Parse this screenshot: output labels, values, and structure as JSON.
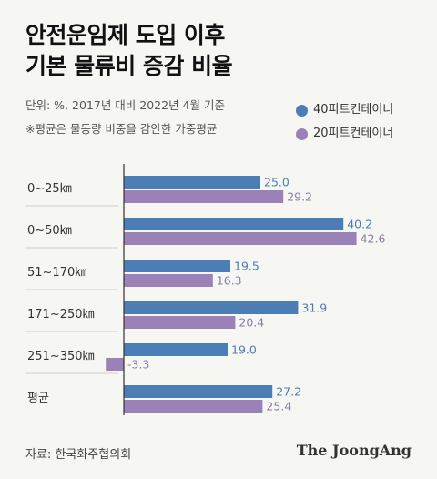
{
  "title_line1": "안전운임제 도입 이후",
  "title_line2": "기본 물류비 증감 비율",
  "note_unit": "단위: %, 2017년 대비 2022년 4월 기준",
  "note_avg": "※평균은 물동량 비중을 감안한 가중평균",
  "source": "자료: 한국화주협의회",
  "brand": "The JoongAng",
  "colors": {
    "series1": "#4d7db5",
    "series2": "#9a82b8",
    "value1": "#4d7db5",
    "value2": "#8a7aa8",
    "axis": "#333333",
    "separator": "#cfcfcf"
  },
  "chart_data": {
    "type": "bar",
    "orientation": "horizontal",
    "title": "안전운임제 도입 이후 기본 물류비 증감 비율",
    "categories": [
      "0~25㎞",
      "0~50㎞",
      "51~170㎞",
      "171~250㎞",
      "251~350㎞",
      "평균"
    ],
    "series": [
      {
        "name": "40피트컨테이너",
        "values": [
          25.0,
          40.2,
          19.5,
          31.9,
          19.0,
          27.2
        ]
      },
      {
        "name": "20피트컨테이너",
        "values": [
          29.2,
          42.6,
          16.3,
          20.4,
          -3.3,
          25.4
        ]
      }
    ],
    "value_labels": [
      [
        "25.0",
        "40.2",
        "19.5",
        "31.9",
        "19.0",
        "27.2"
      ],
      [
        "29.2",
        "42.6",
        "16.3",
        "20.4",
        "-3.3",
        "25.4"
      ]
    ],
    "xlim": [
      -4,
      46
    ],
    "legend_position": "top-right",
    "grid": false
  }
}
